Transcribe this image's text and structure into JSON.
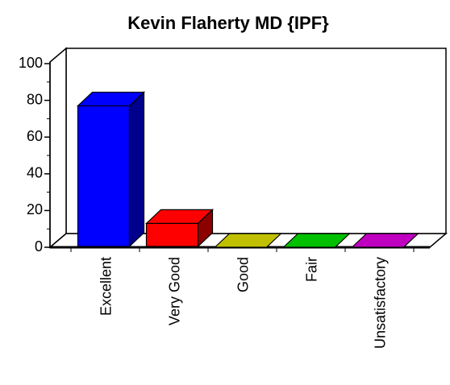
{
  "chart_data": {
    "type": "bar3d",
    "title": "Kevin Flaherty MD {IPF}",
    "categories": [
      "Excellent",
      "Very Good",
      "Good",
      "Fair",
      "Unsatisfactory"
    ],
    "values": [
      77,
      13,
      0,
      0,
      0
    ],
    "colors": [
      "#0000ff",
      "#ff0000",
      "#c0c000",
      "#00c000",
      "#c000c0"
    ],
    "ylim": [
      0,
      100
    ],
    "yticks": [
      0,
      20,
      40,
      60,
      80,
      100
    ]
  }
}
